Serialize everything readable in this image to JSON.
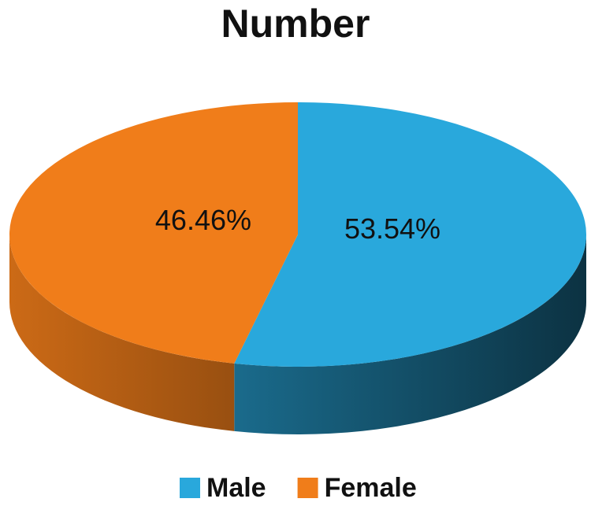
{
  "chart_data": {
    "type": "pie",
    "title": "Number",
    "categories": [
      "Male",
      "Female"
    ],
    "values": [
      53.54,
      46.46
    ],
    "value_labels": [
      "53.54%",
      "46.46%"
    ],
    "colors": [
      "#29a8dc",
      "#f07d1a"
    ],
    "legend": "bottom"
  }
}
